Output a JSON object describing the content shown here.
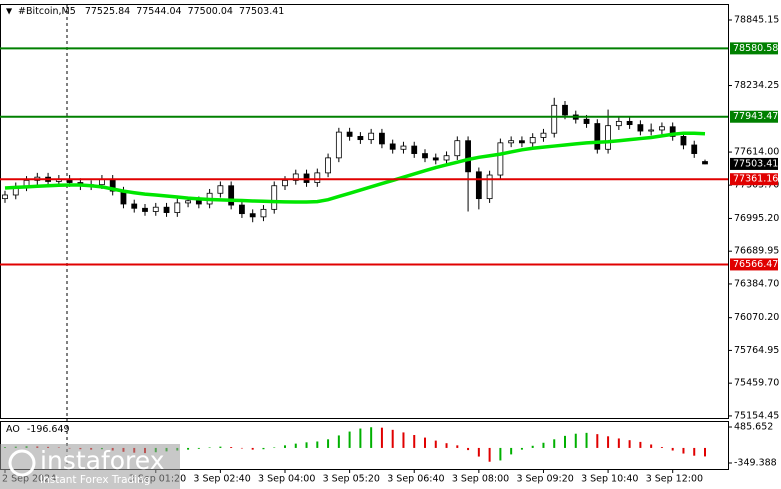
{
  "chart_data": {
    "type": "candlestick",
    "symbol": "#Bitcoin,M5",
    "categories": [
      "2 Sep 2024",
      null,
      null,
      null,
      null,
      null,
      null,
      null,
      null,
      null,
      null,
      null,
      null,
      null,
      "3 Sep 01:20",
      null,
      null,
      null,
      null,
      null,
      "3 Sep 02:40",
      null,
      null,
      null,
      null,
      null,
      "3 Sep 04:00",
      null,
      null,
      null,
      null,
      null,
      "3 Sep 05:20",
      null,
      null,
      null,
      null,
      null,
      "3 Sep 06:40",
      null,
      null,
      null,
      null,
      null,
      "3 Sep 08:00",
      null,
      null,
      null,
      null,
      null,
      "3 Sep 09:20",
      null,
      null,
      null,
      null,
      null,
      "3 Sep 10:40",
      null,
      null,
      null,
      null,
      null,
      "3 Sep 12:00",
      null,
      null,
      null
    ],
    "open": [
      77180,
      77214,
      77290,
      77350,
      77380,
      77340,
      77360,
      77330,
      77300,
      77310,
      77360,
      77250,
      77130,
      77090,
      77060,
      77100,
      77050,
      77140,
      77160,
      77130,
      77230,
      77300,
      77120,
      77040,
      77010,
      77080,
      77300,
      77350,
      77410,
      77330,
      77420,
      77560,
      77800,
      77760,
      77730,
      77790,
      77690,
      77640,
      77670,
      77600,
      77560,
      77540,
      77580,
      77720,
      77430,
      77180,
      77400,
      77700,
      77720,
      77700,
      77750,
      77790,
      78050,
      77960,
      77920,
      77880,
      77640,
      77860,
      77900,
      77870,
      77810,
      77820,
      77850,
      77760,
      77680,
      77525.84
    ],
    "high": [
      77254,
      77330,
      77390,
      77420,
      77420,
      77400,
      77400,
      77370,
      77350,
      77400,
      77400,
      77290,
      77170,
      77130,
      77140,
      77140,
      77180,
      77200,
      77200,
      77270,
      77340,
      77340,
      77160,
      77080,
      77120,
      77340,
      77390,
      77450,
      77450,
      77460,
      77600,
      77840,
      77840,
      77800,
      77830,
      77830,
      77730,
      77710,
      77710,
      77640,
      77600,
      77620,
      77760,
      77760,
      77470,
      77440,
      77740,
      77760,
      77760,
      77790,
      77830,
      78120,
      78090,
      78000,
      77960,
      77920,
      78010,
      77940,
      77940,
      77910,
      77880,
      77890,
      77890,
      77800,
      77720,
      77544.04
    ],
    "low": [
      77140,
      77174,
      77250,
      77310,
      77300,
      77300,
      77290,
      77260,
      77260,
      77270,
      77210,
      77090,
      77050,
      77020,
      77020,
      77010,
      77010,
      77100,
      77090,
      77090,
      77190,
      77080,
      77000,
      76960,
      76970,
      77040,
      77260,
      77310,
      77290,
      77290,
      77380,
      77520,
      77720,
      77690,
      77690,
      77650,
      77600,
      77600,
      77560,
      77520,
      77500,
      77500,
      77540,
      77060,
      77080,
      77140,
      77360,
      77660,
      77660,
      77660,
      77710,
      77750,
      77920,
      77880,
      77840,
      77600,
      77600,
      77820,
      77830,
      77770,
      77770,
      77780,
      77720,
      77640,
      77560,
      77500.04
    ],
    "close": [
      77214,
      77290,
      77350,
      77380,
      77340,
      77360,
      77330,
      77300,
      77310,
      77360,
      77250,
      77130,
      77090,
      77060,
      77100,
      77050,
      77140,
      77160,
      77130,
      77230,
      77300,
      77120,
      77040,
      77010,
      77080,
      77300,
      77350,
      77410,
      77330,
      77420,
      77560,
      77800,
      77760,
      77730,
      77790,
      77690,
      77640,
      77670,
      77600,
      77560,
      77540,
      77580,
      77720,
      77430,
      77180,
      77400,
      77700,
      77720,
      77700,
      77750,
      77790,
      78050,
      77960,
      77920,
      77880,
      77640,
      77860,
      77900,
      77870,
      77810,
      77820,
      77850,
      77760,
      77680,
      77600,
      77503.41
    ],
    "up_color": "#ffffff",
    "down_color": "#000000",
    "ylim": [
      75135,
      78985
    ],
    "yticks": [
      78845.15,
      {
        "value": 78234.25,
        "label": "78234.25"
      },
      {
        "value": 77614,
        "label": "77614.00"
      },
      {
        "value": 77305.7,
        "label": "77305.70"
      },
      {
        "value": 76995.2,
        "label": "76995.20"
      },
      76689.95,
      {
        "value": 76384.7,
        "label": "76384.70"
      },
      {
        "value": 76070.2,
        "label": "76070.20"
      },
      75764.95,
      {
        "value": 75459.7,
        "label": "75459.70"
      },
      75154.45
    ],
    "ma": {
      "color": "#00e600",
      "values": [
        77279,
        77285,
        77290,
        77295,
        77300,
        77305,
        77307,
        77307,
        77300,
        77290,
        77270,
        77250,
        77235,
        77222,
        77214,
        77205,
        77195,
        77185,
        77178,
        77172,
        77168,
        77165,
        77162,
        77158,
        77155,
        77152,
        77150,
        77149,
        77149,
        77152,
        77170,
        77200,
        77230,
        77260,
        77290,
        77320,
        77350,
        77380,
        77410,
        77440,
        77470,
        77495,
        77520,
        77545,
        77565,
        77580,
        77595,
        77615,
        77635,
        77650,
        77660,
        77670,
        77680,
        77690,
        77700,
        77705,
        77710,
        77720,
        77730,
        77740,
        77750,
        77765,
        77780,
        77790,
        77790,
        77785
      ]
    },
    "levels": [
      {
        "value": 78580.58,
        "color": "#008000"
      },
      {
        "value": 77943.47,
        "color": "#008000"
      },
      {
        "value": 77361.16,
        "color": "#e00000"
      },
      {
        "value": 76566.47,
        "color": "#e00000"
      }
    ],
    "ao": {
      "type": "bar",
      "label": "AO",
      "up_color": "#00b000",
      "down_color": "#e00000",
      "values": [
        20,
        30,
        40,
        35,
        25,
        10,
        -10,
        -30,
        -40,
        -30,
        -60,
        -90,
        -110,
        -120,
        -100,
        -80,
        -60,
        -40,
        -20,
        10,
        30,
        20,
        -10,
        -40,
        -30,
        10,
        60,
        100,
        130,
        150,
        200,
        290,
        380,
        450,
        480,
        470,
        420,
        360,
        300,
        240,
        170,
        110,
        60,
        -50,
        -200,
        -320,
        -290,
        -150,
        -40,
        50,
        120,
        200,
        280,
        330,
        350,
        320,
        270,
        220,
        180,
        140,
        80,
        20,
        -60,
        -130,
        -180,
        -196.649
      ],
      "ylim": [
        -349.388,
        485.652
      ],
      "yticks": [
        485.652,
        -349.388
      ]
    }
  },
  "watermark": {
    "name": "instaforex",
    "tagline": "Instant Forex Trading"
  }
}
